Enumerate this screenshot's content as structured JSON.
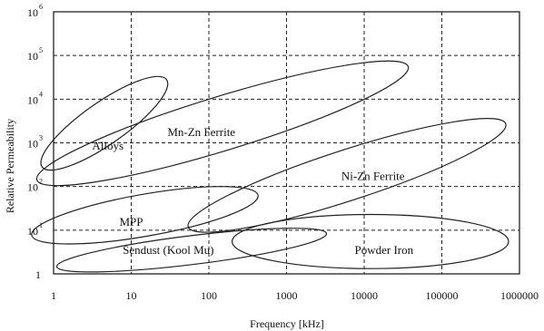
{
  "chart_data": {
    "type": "scatter",
    "title": "",
    "xlabel": "Frequency [kHz]",
    "ylabel": "Relative Permeability",
    "x_scale": "log",
    "y_scale": "log",
    "xlim": [
      1,
      1000000
    ],
    "ylim": [
      1,
      1000000
    ],
    "grid": true,
    "x_ticks": [
      {
        "value": 1,
        "label": "1"
      },
      {
        "value": 10,
        "label": "10"
      },
      {
        "value": 100,
        "label": "100"
      },
      {
        "value": 1000,
        "label": "1000"
      },
      {
        "value": 10000,
        "label": "10000"
      },
      {
        "value": 100000,
        "label": "100000"
      },
      {
        "value": 1000000,
        "label": "1000000"
      }
    ],
    "y_ticks": [
      {
        "value": 1,
        "base": "1",
        "exp": ""
      },
      {
        "value": 10,
        "base": "10",
        "exp": "1"
      },
      {
        "value": 100,
        "base": "10",
        "exp": "2"
      },
      {
        "value": 1000,
        "base": "10",
        "exp": "3"
      },
      {
        "value": 10000,
        "base": "10",
        "exp": "4"
      },
      {
        "value": 100000,
        "base": "10",
        "exp": "5"
      },
      {
        "value": 1000000,
        "base": "10",
        "exp": "6"
      }
    ],
    "regions": [
      {
        "name": "Mn-Zn Ferrite",
        "center": [
          150,
          2800
        ],
        "rx_decades": 2.5,
        "ry_decades": 0.62,
        "angle": 17,
        "label_at": [
          80,
          1800
        ]
      },
      {
        "name": "Alloys",
        "center": [
          4.5,
          2800
        ],
        "rx_decades": 0.98,
        "ry_decades": 0.48,
        "angle": 35,
        "label_at": [
          5,
          880
        ]
      },
      {
        "name": "Ni-Zn Ferrite",
        "center": [
          6000,
          180
        ],
        "rx_decades": 2.15,
        "ry_decades": 0.58,
        "angle": 18,
        "label_at": [
          13000,
          180
        ]
      },
      {
        "name": "MPP",
        "center": [
          15,
          22
        ],
        "rx_decades": 1.48,
        "ry_decades": 0.48,
        "angle": 10,
        "label_at": [
          10,
          16
        ]
      },
      {
        "name": "Sendust (Kool Mu)",
        "center": [
          60,
          3.5
        ],
        "rx_decades": 1.75,
        "ry_decades": 0.33,
        "angle": 7,
        "label_at": [
          30,
          3.6
        ]
      },
      {
        "name": "Powder Iron",
        "center": [
          12000,
          5.5
        ],
        "rx_decades": 1.78,
        "ry_decades": 0.62,
        "angle": 0,
        "label_at": [
          18000,
          3.6
        ]
      }
    ]
  }
}
